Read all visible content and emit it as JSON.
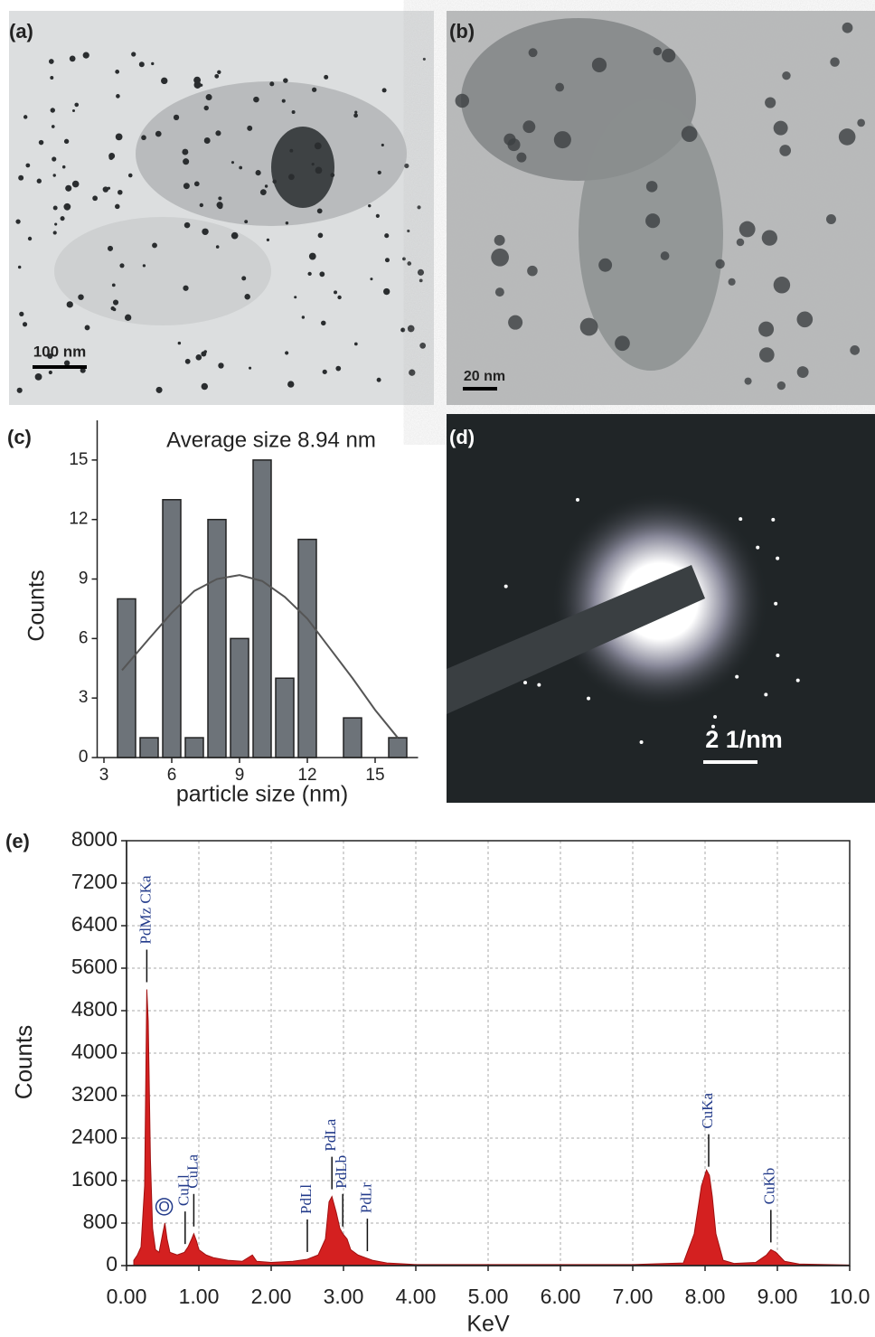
{
  "panels": [
    {
      "label": "(a)",
      "scale_bar": "100 nm"
    },
    {
      "label": "(b)",
      "scale_bar": "20 nm"
    },
    {
      "label": "(d)",
      "scale_bar": "2 1/nm"
    }
  ],
  "chart_data": [
    {
      "type": "bar",
      "panel_label": "(c)",
      "title": "Average size 8.94 nm",
      "x_label": "particle size (nm)",
      "y_label": "Counts",
      "x": [
        4,
        5,
        6,
        7,
        8,
        9,
        10,
        11,
        12,
        14,
        16
      ],
      "values": [
        8,
        1,
        13,
        1,
        12,
        6,
        15,
        4,
        11,
        2,
        1
      ],
      "color": "#6d7379",
      "fit": {
        "color": "#555555",
        "x": [
          3.8,
          5,
          6,
          7,
          8,
          9,
          10,
          11,
          12,
          13,
          14,
          15,
          16
        ],
        "values": [
          4.4,
          6.0,
          7.3,
          8.4,
          9.0,
          9.2,
          8.9,
          8.1,
          7.0,
          5.5,
          4.0,
          2.4,
          1.0
        ]
      },
      "xlim": [
        2.7,
        16.9
      ],
      "ylim": [
        0,
        17
      ],
      "xticks": [
        3,
        6,
        9,
        12,
        15
      ],
      "yticks": [
        0,
        3,
        6,
        9,
        12,
        15
      ]
    },
    {
      "type": "area",
      "panel_label": "(e)",
      "x_label": "KeV",
      "y_label": "Counts",
      "color": "#d42020",
      "grid": true,
      "x": [
        0.1,
        0.15,
        0.2,
        0.25,
        0.28,
        0.3,
        0.33,
        0.36,
        0.4,
        0.45,
        0.5,
        0.53,
        0.56,
        0.6,
        0.7,
        0.8,
        0.85,
        0.9,
        0.93,
        0.97,
        1.0,
        1.1,
        1.2,
        1.4,
        1.6,
        1.74,
        1.8,
        2.0,
        2.3,
        2.5,
        2.65,
        2.75,
        2.8,
        2.84,
        2.9,
        2.95,
        2.99,
        3.05,
        3.1,
        3.2,
        3.3,
        3.4,
        3.6,
        4.0,
        5.0,
        6.0,
        7.0,
        7.7,
        7.85,
        7.95,
        8.02,
        8.06,
        8.1,
        8.15,
        8.25,
        8.4,
        8.7,
        8.85,
        8.91,
        8.98,
        9.1,
        9.3,
        10.0
      ],
      "values": [
        100,
        200,
        350,
        1500,
        5200,
        4600,
        2000,
        700,
        300,
        250,
        600,
        800,
        500,
        250,
        200,
        250,
        350,
        500,
        600,
        450,
        300,
        200,
        150,
        100,
        80,
        200,
        80,
        60,
        80,
        120,
        200,
        500,
        1200,
        1300,
        1000,
        700,
        600,
        500,
        300,
        200,
        150,
        100,
        50,
        20,
        20,
        20,
        20,
        50,
        600,
        1500,
        1800,
        1700,
        1300,
        600,
        100,
        40,
        60,
        200,
        300,
        250,
        80,
        30,
        10
      ],
      "annotations": [
        {
          "text": "PdMz CKa",
          "x": 0.28
        },
        {
          "text": "O",
          "x": 0.52
        },
        {
          "text": "CuLl",
          "x": 0.81
        },
        {
          "text": "CuLa",
          "x": 0.93
        },
        {
          "text": "PdLl",
          "x": 2.5
        },
        {
          "text": "PdLa",
          "x": 2.84
        },
        {
          "text": "PdLb",
          "x": 2.99
        },
        {
          "text": "PdLr",
          "x": 3.33
        },
        {
          "text": "CuKa",
          "x": 8.05
        },
        {
          "text": "CuKb",
          "x": 8.91
        }
      ],
      "xlim": [
        0,
        10
      ],
      "ylim": [
        0,
        8000
      ],
      "xticks": [
        {
          "value": 0,
          "label": "0.00"
        },
        {
          "value": 1,
          "label": "1.00"
        },
        {
          "value": 2,
          "label": "2.00"
        },
        {
          "value": 3,
          "label": "3.00"
        },
        {
          "value": 4,
          "label": "4.00"
        },
        {
          "value": 5,
          "label": "5.00"
        },
        {
          "value": 6,
          "label": "6.00"
        },
        {
          "value": 7,
          "label": "7.00"
        },
        {
          "value": 8,
          "label": "8.00"
        },
        {
          "value": 9,
          "label": "9.00"
        },
        {
          "value": 10,
          "label": "10.0"
        }
      ],
      "yticks": [
        0,
        800,
        1600,
        2400,
        3200,
        4000,
        4800,
        5600,
        6400,
        7200,
        8000
      ]
    }
  ]
}
